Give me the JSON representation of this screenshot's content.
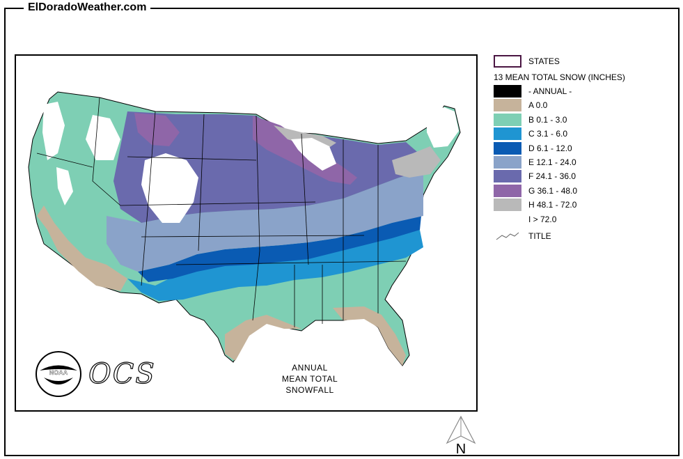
{
  "site": {
    "title": "ElDoradoWeather.com"
  },
  "map": {
    "caption_line1": "ANNUAL",
    "caption_line2": "MEAN TOTAL SNOWFALL",
    "logo_noaa_text": "NOAA",
    "logo_ocs_text": "OCS",
    "north_label": "N"
  },
  "legend": {
    "states_label": "STATES",
    "layer_title": "13 MEAN TOTAL SNOW (INCHES)",
    "items": [
      {
        "label": "- ANNUAL -",
        "color": "#000000"
      },
      {
        "label": "A 0.0",
        "color": "#c6b39b"
      },
      {
        "label": "B 0.1 - 3.0",
        "color": "#7ecfb4"
      },
      {
        "label": "C 3.1 - 6.0",
        "color": "#1f95d2"
      },
      {
        "label": "D 6.1 - 12.0",
        "color": "#0a5bb3"
      },
      {
        "label": "E 12.1 - 24.0",
        "color": "#8aa3c9"
      },
      {
        "label": "F 24.1 - 36.0",
        "color": "#6a6aad"
      },
      {
        "label": "G 36.1 - 48.0",
        "color": "#8f66a8"
      },
      {
        "label": "H 48.1 - 72.0",
        "color": "#b9b9b9"
      },
      {
        "label": "I > 72.0",
        "color": "#ffffff"
      }
    ],
    "title_label": "TITLE"
  }
}
